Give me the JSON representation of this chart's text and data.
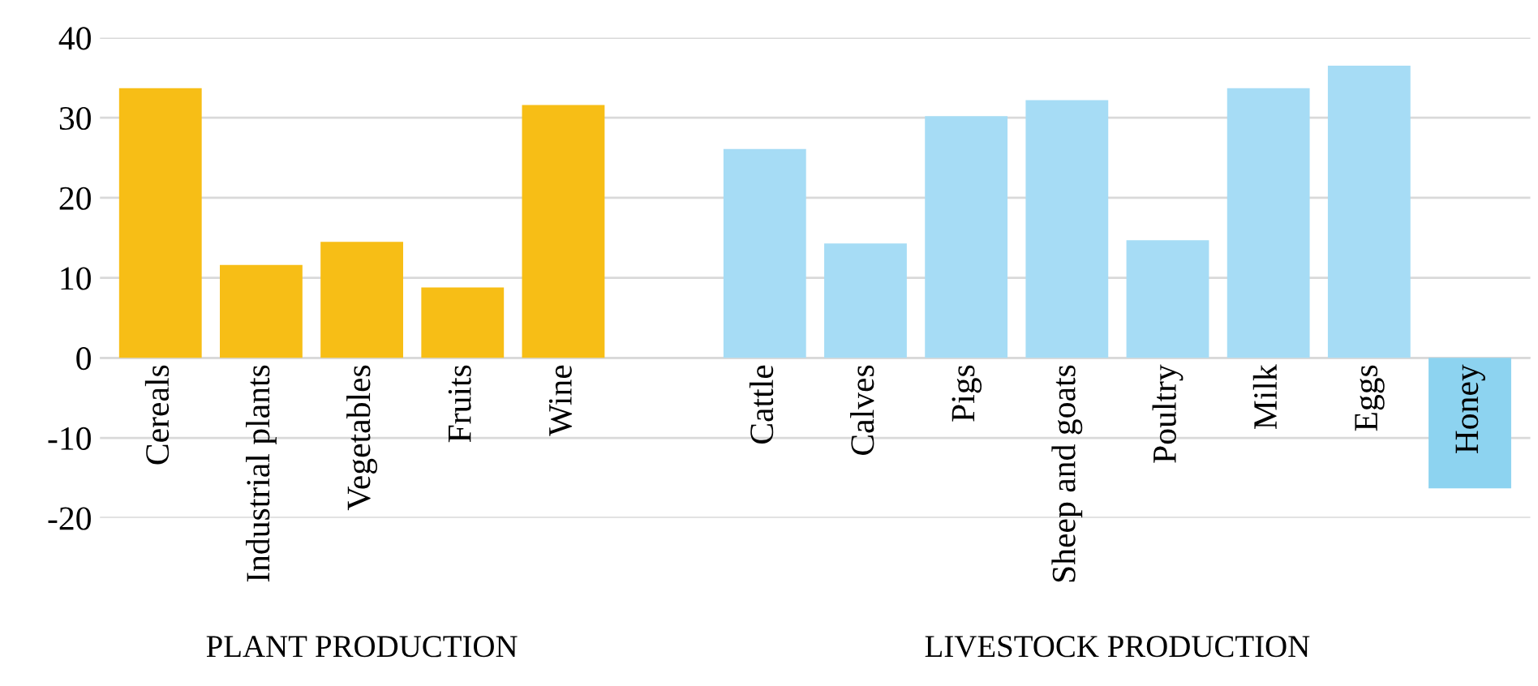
{
  "chart_data": {
    "type": "bar",
    "categories": [
      "Cereals",
      "Industrial plants",
      "Vegetables",
      "Fruits",
      "Wine",
      null,
      "Cattle",
      "Calves",
      "Pigs",
      "Sheep and goats",
      "Poultry",
      "Milk",
      "Eggs",
      "Honey"
    ],
    "values": [
      33.7,
      11.6,
      14.5,
      8.8,
      31.6,
      null,
      26.1,
      14.3,
      30.2,
      32.2,
      14.7,
      33.7,
      36.5,
      -16.3
    ],
    "colors": [
      "#f7be16",
      "#f7be16",
      "#f7be16",
      "#f7be16",
      "#f7be16",
      "#f7be16",
      "#a6dcf5",
      "#a6dcf5",
      "#a6dcf5",
      "#a6dcf5",
      "#a6dcf5",
      "#a6dcf5",
      "#a6dcf5",
      "#8dd3f0"
    ],
    "ylim": [
      -20,
      40
    ],
    "yticks": [
      -20,
      -10,
      0,
      10,
      20,
      30,
      40
    ],
    "grid": "y",
    "annotations": [
      "PLANT PRODUCTION",
      "LIVESTOCK PRODUCTION"
    ]
  }
}
